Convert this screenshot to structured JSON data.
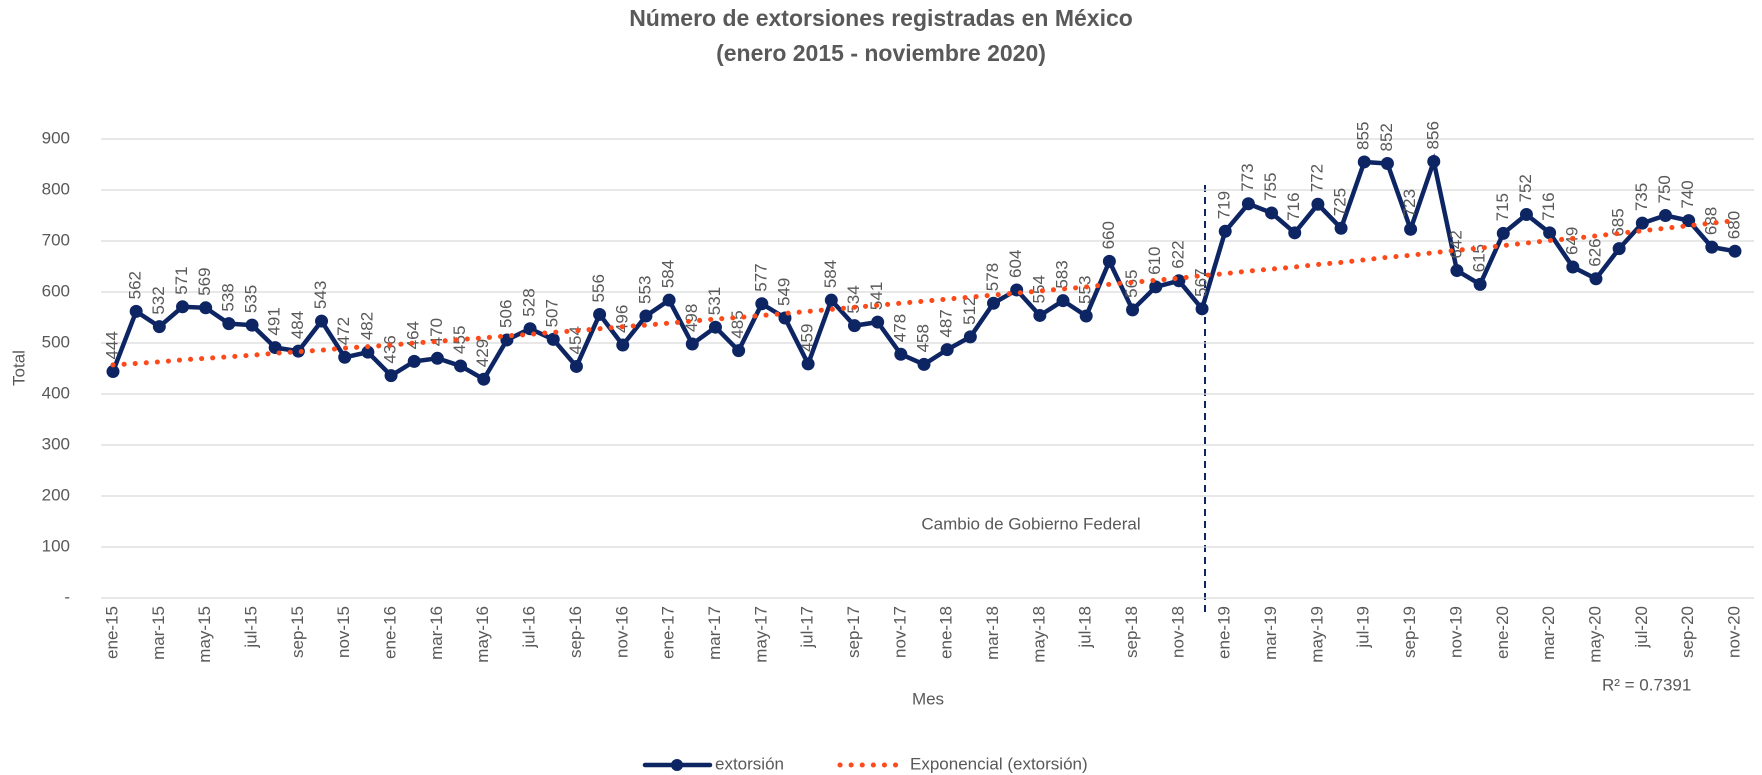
{
  "chart_data": {
    "type": "line",
    "title": "Número de extorsiones registradas en México",
    "subtitle": "(enero 2015 - noviembre 2020)",
    "x_label": "Mes",
    "y_label": "Total",
    "categories": [
      "ene-15",
      null,
      "mar-15",
      null,
      "may-15",
      null,
      "jul-15",
      null,
      "sep-15",
      null,
      "nov-15",
      null,
      "ene-16",
      null,
      "mar-16",
      null,
      "may-16",
      null,
      "jul-16",
      null,
      "sep-16",
      null,
      "nov-16",
      null,
      "ene-17",
      null,
      "mar-17",
      null,
      "may-17",
      null,
      "jul-17",
      null,
      "sep-17",
      null,
      "nov-17",
      null,
      "ene-18",
      null,
      "mar-18",
      null,
      "may-18",
      null,
      "jul-18",
      null,
      "sep-18",
      null,
      "nov-18",
      null,
      "ene-19",
      null,
      "mar-19",
      null,
      "may-19",
      null,
      "jul-19",
      null,
      "sep-19",
      null,
      "nov-19",
      null,
      "ene-20",
      null,
      "mar-20",
      null,
      "may-20",
      null,
      "jul-20",
      null,
      "sep-20",
      null,
      "nov-20"
    ],
    "series": [
      {
        "name": "extorsión",
        "color": "#0e2564",
        "values": [
          444,
          562,
          532,
          571,
          569,
          538,
          535,
          491,
          484,
          543,
          472,
          482,
          436,
          464,
          470,
          455,
          429,
          506,
          528,
          507,
          454,
          556,
          496,
          553,
          584,
          498,
          531,
          485,
          577,
          549,
          459,
          584,
          534,
          541,
          478,
          458,
          487,
          512,
          578,
          604,
          554,
          583,
          553,
          660,
          565,
          610,
          622,
          567,
          719,
          773,
          755,
          716,
          772,
          725,
          855,
          852,
          723,
          856,
          642,
          615,
          715,
          752,
          716,
          649,
          626,
          685,
          735,
          750,
          740,
          688,
          680
        ]
      },
      {
        "name": "Exponencial (extorsión)",
        "color": "#fc4a1a",
        "style": "dotted",
        "values": [
          457,
          460,
          463,
          467,
          470,
          473,
          476,
          480,
          483,
          486,
          490,
          493,
          496,
          500,
          503,
          507,
          510,
          514,
          517,
          521,
          524,
          528,
          532,
          535,
          539,
          543,
          547,
          550,
          554,
          558,
          562,
          566,
          570,
          574,
          578,
          582,
          586,
          590,
          594,
          598,
          602,
          606,
          610,
          615,
          619,
          623,
          627,
          632,
          636,
          641,
          645,
          649,
          654,
          658,
          663,
          668,
          672,
          677,
          682,
          686,
          691,
          696,
          701,
          705,
          710,
          715,
          720,
          725,
          730,
          735,
          740
        ]
      }
    ],
    "annotations": [
      "Cambio de Gobierno Federal",
      "R² = 0.7391"
    ],
    "ylim": [
      0,
      900
    ],
    "yticks": [
      {
        "value": 0,
        "label": "-"
      },
      100,
      200,
      300,
      400,
      500,
      600,
      700,
      800,
      900
    ],
    "grid": true,
    "legend": "bottom"
  }
}
